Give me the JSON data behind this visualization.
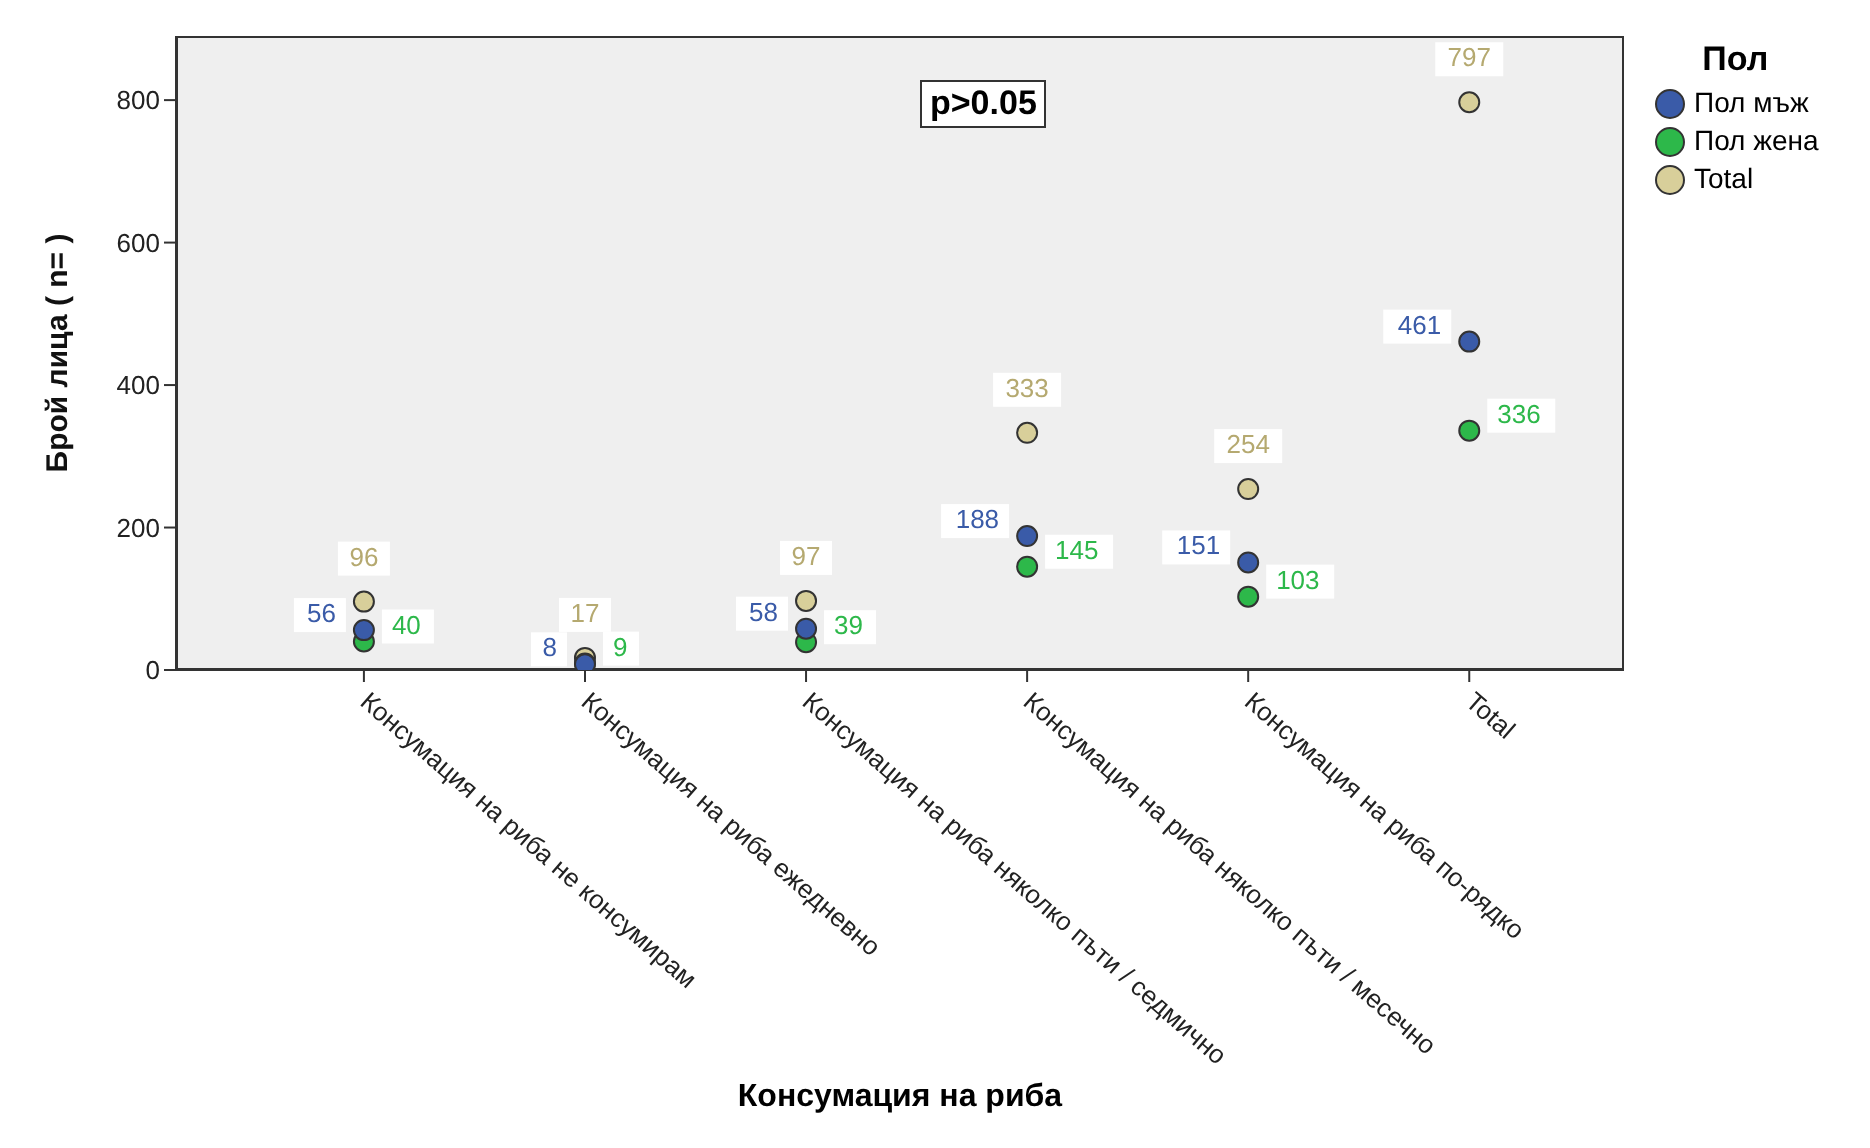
{
  "chart_data": {
    "type": "scatter",
    "xlabel": "Консумация на риба",
    "ylabel": "Брой лица ( n= )",
    "legend_title": "Пол",
    "categories": [
      "Консумация на риба не консумирам",
      "Консумация на риба ежедневно",
      "Консумация на риба няколко пъти / седмично",
      "Консумация на риба няколко пъти / месечно",
      "Консумация на риба по-рядко",
      "Total"
    ],
    "series": [
      {
        "name": "Пол мъж",
        "color": "#3a5ba8",
        "values": [
          56,
          8,
          58,
          188,
          151,
          461
        ]
      },
      {
        "name": "Пол жена",
        "color": "#2db84a",
        "values": [
          40,
          9,
          39,
          145,
          103,
          336
        ]
      },
      {
        "name": "Total",
        "color": "#d8cf9a",
        "values": [
          96,
          17,
          97,
          333,
          254,
          797
        ]
      }
    ],
    "ylim": [
      0,
      890
    ],
    "yticks": [
      0,
      200,
      400,
      600,
      800
    ],
    "grid": false,
    "legend": "top right",
    "marker": "circle",
    "data_labels": true,
    "annotations": [
      "p>0.05"
    ]
  }
}
